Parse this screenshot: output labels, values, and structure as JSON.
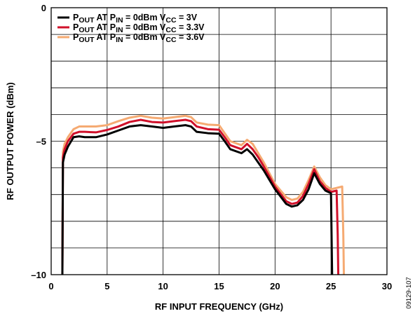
{
  "chart_data": {
    "type": "line",
    "xlabel": "RF INPUT FREQUENCY (GHz)",
    "ylabel": "RF OUTPUT POWER (dBm)",
    "xlim": [
      0,
      30
    ],
    "ylim": [
      -10,
      0
    ],
    "x_ticks": [
      "0",
      "5",
      "10",
      "15",
      "20",
      "25",
      "30"
    ],
    "y_ticks": [
      "0",
      "–5",
      "–10"
    ],
    "grid": true,
    "legend_position": "top-left",
    "figure_id": "09129-107",
    "series": [
      {
        "name": "POUT AT PIN = 0dBm VCC = 3V",
        "legend_parts": [
          "P",
          "OUT",
          " AT P",
          "IN",
          " = 0dBm V",
          "CC",
          " = 3V"
        ],
        "color": "#000000",
        "x": [
          1.0,
          1.05,
          1.2,
          1.5,
          2.0,
          2.5,
          3.0,
          4.0,
          5.0,
          6.0,
          7.0,
          8.0,
          9.0,
          10.0,
          11.0,
          12.0,
          12.5,
          13.0,
          14.0,
          15.0,
          15.5,
          16.0,
          17.0,
          17.5,
          18.0,
          18.5,
          19.0,
          20.0,
          21.0,
          21.5,
          22.0,
          22.5,
          23.0,
          23.5,
          24.0,
          24.5,
          25.0,
          25.05,
          25.1
        ],
        "y": [
          -10.0,
          -5.8,
          -5.5,
          -5.2,
          -4.85,
          -4.82,
          -4.85,
          -4.85,
          -4.75,
          -4.6,
          -4.45,
          -4.4,
          -4.45,
          -4.5,
          -4.45,
          -4.4,
          -4.45,
          -4.65,
          -4.7,
          -4.72,
          -5.0,
          -5.3,
          -5.45,
          -5.3,
          -5.5,
          -5.8,
          -6.1,
          -6.8,
          -7.35,
          -7.45,
          -7.4,
          -7.2,
          -6.8,
          -6.2,
          -6.6,
          -6.85,
          -6.95,
          -8.5,
          -10.0
        ]
      },
      {
        "name": "POUT AT PIN = 0dBm VCC = 3.3V",
        "legend_parts": [
          "P",
          "OUT",
          " AT P",
          "IN",
          " = 0dBm V",
          "CC",
          " = 3.3V"
        ],
        "color": "#d0102a",
        "x": [
          1.0,
          1.05,
          1.2,
          1.5,
          2.0,
          2.5,
          3.0,
          4.0,
          5.0,
          6.0,
          7.0,
          8.0,
          9.0,
          10.0,
          11.0,
          12.0,
          12.5,
          13.0,
          14.0,
          15.0,
          15.5,
          16.0,
          17.0,
          17.5,
          18.0,
          18.5,
          19.0,
          20.0,
          21.0,
          21.5,
          22.0,
          22.5,
          23.0,
          23.5,
          24.0,
          24.5,
          25.0,
          25.5,
          25.6,
          25.65
        ],
        "y": [
          -10.0,
          -5.6,
          -5.3,
          -5.0,
          -4.72,
          -4.65,
          -4.65,
          -4.67,
          -4.58,
          -4.45,
          -4.28,
          -4.2,
          -4.28,
          -4.3,
          -4.25,
          -4.2,
          -4.25,
          -4.45,
          -4.55,
          -4.57,
          -4.85,
          -5.15,
          -5.3,
          -5.1,
          -5.3,
          -5.6,
          -5.95,
          -6.7,
          -7.25,
          -7.35,
          -7.3,
          -7.05,
          -6.6,
          -6.05,
          -6.5,
          -6.75,
          -6.9,
          -6.85,
          -8.5,
          -10.0
        ]
      },
      {
        "name": "POUT AT PIN = 0dBm VCC = 3.6V",
        "legend_parts": [
          "P",
          "OUT",
          " AT P",
          "IN",
          " = 0dBm V",
          "CC",
          " = 3.6V"
        ],
        "color": "#f5aa72",
        "x": [
          1.0,
          1.05,
          1.2,
          1.5,
          2.0,
          2.5,
          3.0,
          4.0,
          5.0,
          6.0,
          7.0,
          8.0,
          9.0,
          10.0,
          11.0,
          12.0,
          12.5,
          13.0,
          14.0,
          15.0,
          15.5,
          16.0,
          17.0,
          17.5,
          18.0,
          18.5,
          19.0,
          20.0,
          21.0,
          21.5,
          22.0,
          22.5,
          23.0,
          23.5,
          24.0,
          24.5,
          25.0,
          25.5,
          26.0,
          26.1,
          26.15
        ],
        "y": [
          -10.0,
          -5.4,
          -5.1,
          -4.85,
          -4.55,
          -4.45,
          -4.45,
          -4.45,
          -4.4,
          -4.25,
          -4.12,
          -4.05,
          -4.12,
          -4.15,
          -4.1,
          -4.05,
          -4.1,
          -4.3,
          -4.38,
          -4.4,
          -4.7,
          -5.0,
          -5.15,
          -4.95,
          -5.1,
          -5.45,
          -5.8,
          -6.6,
          -7.1,
          -7.2,
          -7.15,
          -6.9,
          -6.45,
          -5.95,
          -6.35,
          -6.65,
          -6.8,
          -6.75,
          -6.7,
          -8.5,
          -10.0
        ]
      }
    ]
  }
}
